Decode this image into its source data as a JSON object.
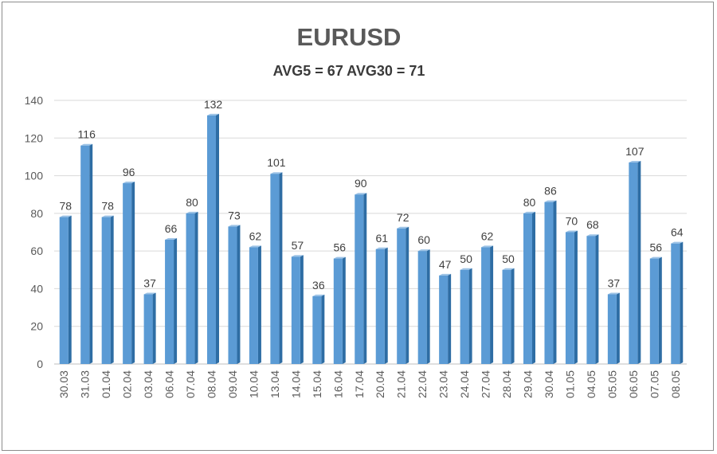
{
  "chart_data": {
    "type": "bar",
    "title": "EURUSD",
    "subtitle": "AVG5 = 67 AVG30 = 71",
    "categories": [
      "30.03",
      "31.03",
      "01.04",
      "02.04",
      "03.04",
      "06.04",
      "07.04",
      "08.04",
      "09.04",
      "10.04",
      "13.04",
      "14.04",
      "15.04",
      "16.04",
      "17.04",
      "20.04",
      "21.04",
      "22.04",
      "23.04",
      "24.04",
      "27.04",
      "28.04",
      "29.04",
      "30.04",
      "01.05",
      "04.05",
      "05.05",
      "06.05",
      "07.05",
      "08.05"
    ],
    "values": [
      78,
      116,
      78,
      96,
      37,
      66,
      80,
      132,
      73,
      62,
      101,
      57,
      36,
      56,
      90,
      61,
      72,
      60,
      47,
      50,
      62,
      50,
      80,
      86,
      70,
      68,
      37,
      107,
      56,
      64
    ],
    "ylim": [
      0,
      140
    ],
    "yticks": [
      0,
      20,
      40,
      60,
      80,
      100,
      120,
      140
    ],
    "grid": true,
    "legend": "none",
    "colors": {
      "bar": "#5b9bd5",
      "bar_side": "#2e6da4",
      "grid": "#d9d9d9",
      "text": "#595959"
    }
  }
}
